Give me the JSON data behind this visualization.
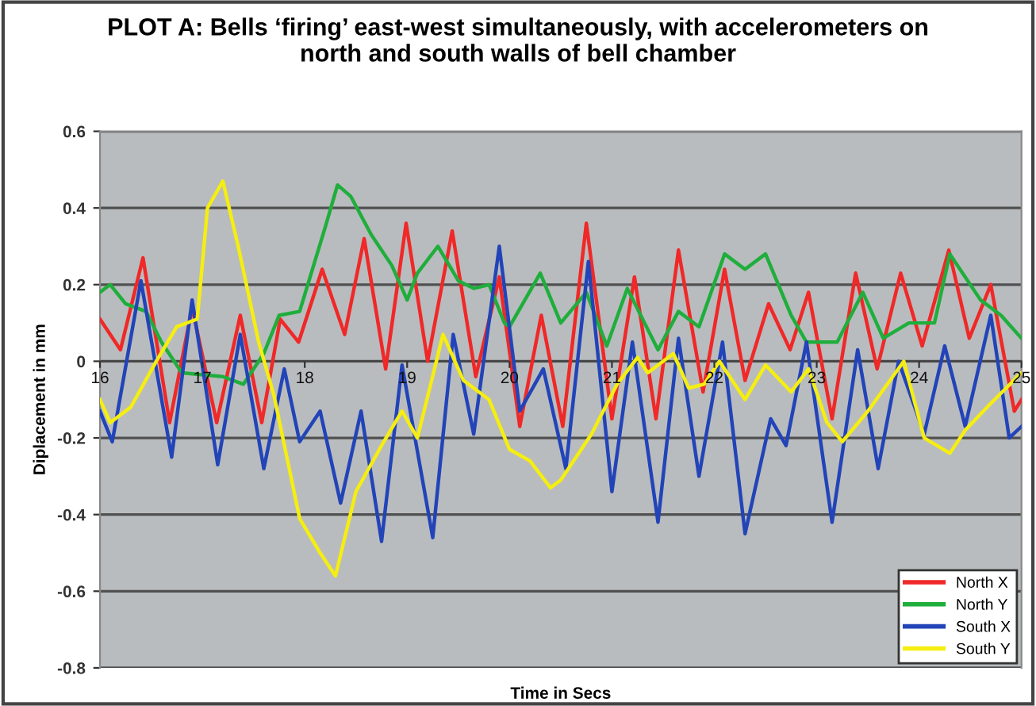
{
  "chart_data": {
    "type": "line",
    "title": "PLOT A: Bells ‘firing’ east-west simultaneously, with accelerometers on\nnorth and south walls of bell chamber",
    "xlabel": "Time in Secs",
    "ylabel": "Diplacement in mm",
    "xlim": [
      16,
      25
    ],
    "xticks": [
      16,
      17,
      18,
      19,
      20,
      21,
      22,
      23,
      24,
      25
    ],
    "ylim": [
      -0.8,
      0.6
    ],
    "yticks": [
      -0.8,
      -0.6,
      -0.4,
      -0.2,
      {
        "value": 0,
        "label": "0"
      },
      0.2,
      0.4,
      0.6
    ],
    "grid": "y",
    "legend": "bottom right",
    "marker": "none",
    "line_style": "solid",
    "series": [
      {
        "name": "North X",
        "color": "#f02828",
        "x": [
          16.0,
          16.2,
          16.42,
          16.68,
          16.9,
          17.14,
          17.37,
          17.58,
          17.76,
          17.94,
          18.17,
          18.39,
          18.58,
          18.79,
          18.99,
          19.2,
          19.44,
          19.67,
          19.9,
          20.1,
          20.31,
          20.52,
          20.75,
          21.0,
          21.22,
          21.43,
          21.65,
          21.89,
          22.1,
          22.3,
          22.53,
          22.74,
          22.92,
          23.15,
          23.38,
          23.59,
          23.82,
          24.03,
          24.29,
          24.49,
          24.7,
          24.93,
          25.0
        ],
        "values": [
          0.11,
          0.03,
          0.27,
          -0.16,
          0.14,
          -0.16,
          0.12,
          -0.16,
          0.11,
          0.05,
          0.24,
          0.07,
          0.32,
          -0.02,
          0.36,
          0.0,
          0.34,
          -0.04,
          0.22,
          -0.17,
          0.12,
          -0.17,
          0.36,
          -0.15,
          0.22,
          -0.15,
          0.29,
          -0.08,
          0.24,
          -0.05,
          0.15,
          0.03,
          0.18,
          -0.15,
          0.23,
          -0.02,
          0.23,
          0.04,
          0.29,
          0.06,
          0.2,
          -0.13,
          -0.1
        ]
      },
      {
        "name": "North Y",
        "color": "#1fae3c",
        "x": [
          16.0,
          16.1,
          16.25,
          16.45,
          16.6,
          16.8,
          17.2,
          17.4,
          17.6,
          17.75,
          17.95,
          18.2,
          18.32,
          18.45,
          18.65,
          18.85,
          19.0,
          19.1,
          19.3,
          19.5,
          19.65,
          19.8,
          19.95,
          20.0,
          20.3,
          20.5,
          20.75,
          20.95,
          21.15,
          21.45,
          21.65,
          21.85,
          22.1,
          22.3,
          22.5,
          22.75,
          22.9,
          23.2,
          23.45,
          23.65,
          23.9,
          24.15,
          24.3,
          24.6,
          24.8,
          25.0
        ],
        "values": [
          0.18,
          0.2,
          0.15,
          0.13,
          0.05,
          -0.03,
          -0.04,
          -0.06,
          0.02,
          0.12,
          0.13,
          0.35,
          0.46,
          0.43,
          0.33,
          0.25,
          0.16,
          0.23,
          0.3,
          0.21,
          0.19,
          0.2,
          0.1,
          0.09,
          0.23,
          0.1,
          0.18,
          0.04,
          0.19,
          0.03,
          0.13,
          0.09,
          0.28,
          0.24,
          0.28,
          0.12,
          0.05,
          0.05,
          0.18,
          0.06,
          0.1,
          0.1,
          0.28,
          0.16,
          0.12,
          0.06
        ]
      },
      {
        "name": "South X",
        "color": "#2244b8",
        "x": [
          16.0,
          16.12,
          16.4,
          16.7,
          16.9,
          17.15,
          17.37,
          17.6,
          17.8,
          17.95,
          18.15,
          18.35,
          18.55,
          18.75,
          18.95,
          19.05,
          19.25,
          19.45,
          19.65,
          19.9,
          20.1,
          20.33,
          20.55,
          20.77,
          21.0,
          21.2,
          21.45,
          21.65,
          21.85,
          22.08,
          22.3,
          22.55,
          22.7,
          22.9,
          23.15,
          23.4,
          23.6,
          23.8,
          24.05,
          24.25,
          24.45,
          24.7,
          24.88,
          25.0
        ],
        "values": [
          -0.13,
          -0.21,
          0.21,
          -0.25,
          0.16,
          -0.27,
          0.07,
          -0.28,
          -0.02,
          -0.21,
          -0.13,
          -0.37,
          -0.13,
          -0.47,
          -0.01,
          -0.16,
          -0.46,
          0.07,
          -0.19,
          0.3,
          -0.13,
          -0.02,
          -0.28,
          0.26,
          -0.34,
          0.05,
          -0.42,
          0.06,
          -0.3,
          0.05,
          -0.45,
          -0.15,
          -0.22,
          0.05,
          -0.42,
          0.03,
          -0.28,
          0.0,
          -0.19,
          0.04,
          -0.17,
          0.12,
          -0.2,
          -0.17
        ]
      },
      {
        "name": "South Y",
        "color": "#f5ee10",
        "x": [
          16.0,
          16.1,
          16.3,
          16.55,
          16.75,
          16.95,
          17.05,
          17.2,
          17.35,
          17.55,
          17.7,
          17.95,
          18.15,
          18.3,
          18.5,
          18.75,
          18.95,
          19.1,
          19.35,
          19.55,
          19.8,
          20.0,
          20.2,
          20.4,
          20.5,
          20.8,
          21.05,
          21.25,
          21.35,
          21.6,
          21.75,
          21.9,
          22.05,
          22.3,
          22.5,
          22.75,
          22.92,
          23.1,
          23.25,
          23.5,
          23.85,
          24.05,
          24.3,
          24.45,
          24.7,
          24.85,
          25.0
        ],
        "values": [
          -0.1,
          -0.16,
          -0.12,
          0.0,
          0.09,
          0.11,
          0.4,
          0.47,
          0.3,
          0.05,
          -0.09,
          -0.41,
          -0.5,
          -0.56,
          -0.34,
          -0.22,
          -0.13,
          -0.2,
          0.07,
          -0.05,
          -0.1,
          -0.23,
          -0.26,
          -0.33,
          -0.31,
          -0.19,
          -0.06,
          0.01,
          -0.03,
          0.02,
          -0.07,
          -0.06,
          0.0,
          -0.1,
          -0.01,
          -0.08,
          -0.02,
          -0.16,
          -0.21,
          -0.13,
          0.0,
          -0.2,
          -0.24,
          -0.18,
          -0.11,
          -0.07,
          -0.03
        ]
      }
    ]
  }
}
